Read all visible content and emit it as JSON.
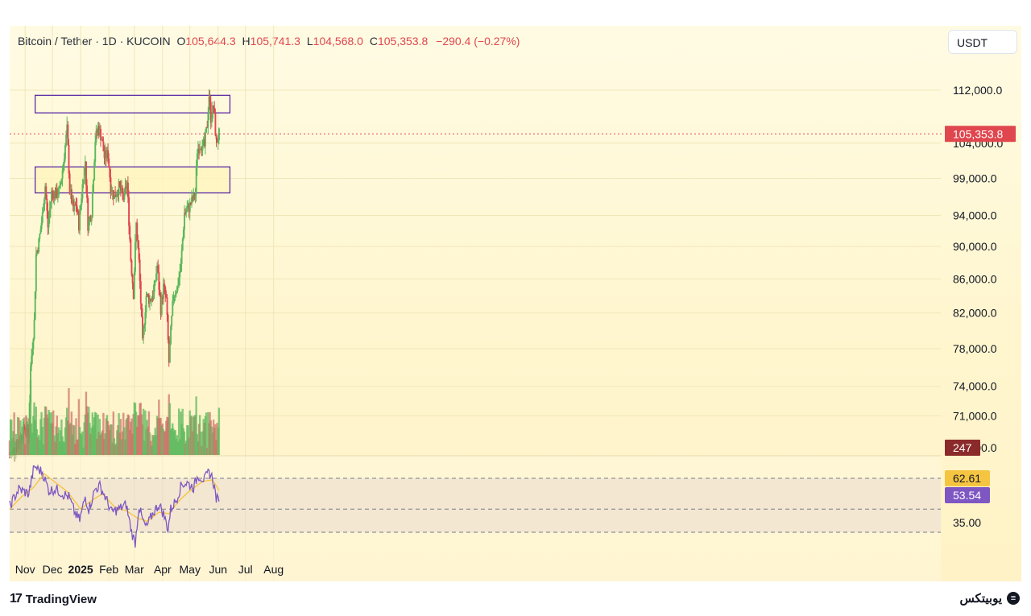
{
  "header": {
    "symbol": "Bitcoin / Tether · 1D · KUCOIN",
    "open_label": "O",
    "open": "105,644.3",
    "high_label": "H",
    "high": "105,741.3",
    "low_label": "L",
    "low": "104,568.0",
    "close_label": "C",
    "close": "105,353.8",
    "change": "−290.4 (−0.27%)"
  },
  "currency_button": "USDT",
  "footer": {
    "brand": "TradingView",
    "brand_icon": "tradingview-logo-icon",
    "watermark": "یوبیتکس",
    "watermark_icon": "ubitex-logo-icon"
  },
  "colors": {
    "up": "#5cb85c",
    "down": "#e0464e",
    "zone": "#5b2ea6",
    "rsi": "#7e57c2",
    "rsi_ma": "#f5c542",
    "price_tag": "#e0464e",
    "volume_tag": "#8b2a2a"
  },
  "chart_data": [
    {
      "type": "candlestick",
      "title": "",
      "x_ticks": [
        "Nov",
        "Dec",
        "2025",
        "Feb",
        "Mar",
        "Apr",
        "May",
        "Jun",
        "Jul",
        "Aug"
      ],
      "y_ticks": [
        "112,000.0",
        "104,000.0",
        "99,000.0",
        "94,000.0",
        "90,000.0",
        "86,000.0",
        "82,000.0",
        "78,000.0",
        "74,000.0",
        "71,000.0",
        "70,000.0"
      ],
      "ylim": [
        68000,
        115000
      ],
      "last_price": "105,353.8",
      "volume_value": "247",
      "zones": [
        {
          "from": 108500,
          "to": 111200,
          "x_start": "2024-11-12",
          "x_end": "2025-06-14"
        },
        {
          "from": 97000,
          "to": 100600,
          "x_start": "2024-11-12",
          "x_end": "2025-06-14"
        }
      ],
      "close_path": [
        [
          "2024-10-15",
          67000
        ],
        [
          "2024-10-25",
          68500
        ],
        [
          "2024-11-01",
          70000
        ],
        [
          "2024-11-05",
          69200
        ],
        [
          "2024-11-07",
          76000
        ],
        [
          "2024-11-11",
          81000
        ],
        [
          "2024-11-13",
          89000
        ],
        [
          "2024-11-16",
          90500
        ],
        [
          "2024-11-20",
          94000
        ],
        [
          "2024-11-23",
          98000
        ],
        [
          "2024-11-26",
          92500
        ],
        [
          "2024-11-30",
          97000
        ],
        [
          "2024-12-05",
          96800
        ],
        [
          "2024-12-09",
          97300
        ],
        [
          "2024-12-13",
          101200
        ],
        [
          "2024-12-17",
          106000
        ],
        [
          "2024-12-20",
          97500
        ],
        [
          "2024-12-24",
          94500
        ],
        [
          "2024-12-27",
          95500
        ],
        [
          "2024-12-30",
          92800
        ],
        [
          "2025-01-03",
          98000
        ],
        [
          "2025-01-06",
          101500
        ],
        [
          "2025-01-09",
          92800
        ],
        [
          "2025-01-13",
          94500
        ],
        [
          "2025-01-17",
          104500
        ],
        [
          "2025-01-20",
          106300
        ],
        [
          "2025-01-24",
          104800
        ],
        [
          "2025-01-27",
          102000
        ],
        [
          "2025-01-31",
          102400
        ],
        [
          "2025-02-03",
          97800
        ],
        [
          "2025-02-07",
          96500
        ],
        [
          "2025-02-12",
          97800
        ],
        [
          "2025-02-17",
          96300
        ],
        [
          "2025-02-21",
          98300
        ],
        [
          "2025-02-25",
          88500
        ],
        [
          "2025-02-28",
          84300
        ],
        [
          "2025-03-03",
          92800
        ],
        [
          "2025-03-06",
          88000
        ],
        [
          "2025-03-10",
          78500
        ],
        [
          "2025-03-14",
          84000
        ],
        [
          "2025-03-18",
          83500
        ],
        [
          "2025-03-22",
          84200
        ],
        [
          "2025-03-26",
          87600
        ],
        [
          "2025-03-30",
          82500
        ],
        [
          "2025-04-02",
          85000
        ],
        [
          "2025-04-05",
          83500
        ],
        [
          "2025-04-08",
          76500
        ],
        [
          "2025-04-10",
          79800
        ],
        [
          "2025-04-13",
          84200
        ],
        [
          "2025-04-17",
          84900
        ],
        [
          "2025-04-21",
          87500
        ],
        [
          "2025-04-25",
          94300
        ],
        [
          "2025-04-29",
          94800
        ],
        [
          "2025-05-03",
          95800
        ],
        [
          "2025-05-07",
          96800
        ],
        [
          "2025-05-09",
          103000
        ],
        [
          "2025-05-13",
          104000
        ],
        [
          "2025-05-17",
          103500
        ],
        [
          "2025-05-20",
          106800
        ],
        [
          "2025-05-22",
          111300
        ],
        [
          "2025-05-24",
          107800
        ],
        [
          "2025-05-27",
          109400
        ],
        [
          "2025-05-30",
          104000
        ],
        [
          "2025-06-02",
          105300
        ]
      ]
    },
    {
      "type": "line",
      "title": "",
      "y_ticks": [
        "70.00",
        "35.00"
      ],
      "ylim": [
        25,
        78
      ],
      "band": [
        35,
        70
      ],
      "mid": 50,
      "series": [
        {
          "values": [
            [
              "2024-10-15",
              52
            ],
            [
              "2024-10-25",
              63
            ],
            [
              "2024-11-05",
              60
            ],
            [
              "2024-11-11",
              78
            ],
            [
              "2024-11-20",
              74
            ],
            [
              "2024-11-27",
              62
            ],
            [
              "2024-12-05",
              63
            ],
            [
              "2024-12-12",
              60
            ],
            [
              "2024-12-19",
              58
            ],
            [
              "2024-12-26",
              47
            ],
            [
              "2024-12-31",
              43
            ],
            [
              "2025-01-06",
              58
            ],
            [
              "2025-01-10",
              50
            ],
            [
              "2025-01-17",
              63
            ],
            [
              "2025-01-22",
              65
            ],
            [
              "2025-01-28",
              58
            ],
            [
              "2025-02-04",
              48
            ],
            [
              "2025-02-12",
              50
            ],
            [
              "2025-02-20",
              53
            ],
            [
              "2025-02-26",
              35
            ],
            [
              "2025-03-02",
              28
            ],
            [
              "2025-03-06",
              52
            ],
            [
              "2025-03-10",
              43
            ],
            [
              "2025-03-14",
              38
            ],
            [
              "2025-03-22",
              48
            ],
            [
              "2025-03-28",
              53
            ],
            [
              "2025-04-02",
              47
            ],
            [
              "2025-04-07",
              37
            ],
            [
              "2025-04-10",
              50
            ],
            [
              "2025-04-16",
              56
            ],
            [
              "2025-04-22",
              66
            ],
            [
              "2025-04-28",
              67
            ],
            [
              "2025-05-05",
              64
            ],
            [
              "2025-05-10",
              72
            ],
            [
              "2025-05-17",
              69
            ],
            [
              "2025-05-22",
              74
            ],
            [
              "2025-05-26",
              70
            ],
            [
              "2025-05-30",
              57
            ],
            [
              "2025-06-02",
              55
            ]
          ]
        },
        {
          "values": [
            [
              "2024-10-15",
              50
            ],
            [
              "2024-10-28",
              58
            ],
            [
              "2024-11-10",
              64
            ],
            [
              "2024-11-22",
              73
            ],
            [
              "2024-12-05",
              67
            ],
            [
              "2024-12-18",
              61
            ],
            [
              "2025-01-01",
              50
            ],
            [
              "2025-01-14",
              56
            ],
            [
              "2025-01-25",
              60
            ],
            [
              "2025-02-08",
              51
            ],
            [
              "2025-02-20",
              49
            ],
            [
              "2025-03-05",
              44
            ],
            [
              "2025-03-15",
              42
            ],
            [
              "2025-03-28",
              48
            ],
            [
              "2025-04-08",
              47
            ],
            [
              "2025-04-20",
              56
            ],
            [
              "2025-05-01",
              62
            ],
            [
              "2025-05-15",
              68
            ],
            [
              "2025-05-26",
              69
            ],
            [
              "2025-06-02",
              62
            ]
          ]
        }
      ],
      "values_shown": [
        "62.61",
        "53.54"
      ]
    }
  ]
}
